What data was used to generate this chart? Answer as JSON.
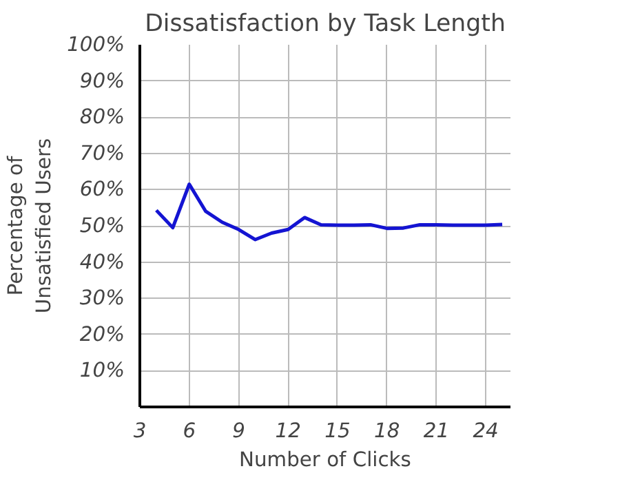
{
  "chart_data": {
    "type": "line",
    "title": "Dissatisfaction by Task Length",
    "xlabel": "Number of Clicks",
    "ylabel": "Percentage of\nUnsatisfied Users",
    "x": [
      4,
      5,
      6,
      7,
      8,
      9,
      10,
      11,
      12,
      13,
      14,
      15,
      16,
      17,
      18,
      19,
      20,
      21,
      22,
      23,
      24,
      25
    ],
    "series": [
      {
        "color": "#1414d2",
        "values": [
          54.3,
          49.5,
          61.5,
          54,
          51,
          49,
          46.2,
          48,
          49,
          52.3,
          50.3,
          50.2,
          50.2,
          50.3,
          49.3,
          49.4,
          50.3,
          50.3,
          50.2,
          50.2,
          50.2,
          50.4
        ]
      }
    ],
    "xlim": [
      3,
      25.5
    ],
    "ylim": [
      0,
      100
    ],
    "xticks": [
      3,
      6,
      9,
      12,
      15,
      18,
      21,
      24
    ],
    "yticks": [
      {
        "value": 10,
        "label": "10%"
      },
      {
        "value": 20,
        "label": "20%"
      },
      {
        "value": 30,
        "label": "30%"
      },
      {
        "value": 40,
        "label": "40%"
      },
      {
        "value": 50,
        "label": "50%"
      },
      {
        "value": 60,
        "label": "60%"
      },
      {
        "value": 70,
        "label": "70%"
      },
      {
        "value": 80,
        "label": "80%"
      },
      {
        "value": 90,
        "label": "90%"
      },
      {
        "value": 100,
        "label": "100%"
      }
    ],
    "grid": true,
    "marker": "none",
    "line_style": "solid"
  }
}
